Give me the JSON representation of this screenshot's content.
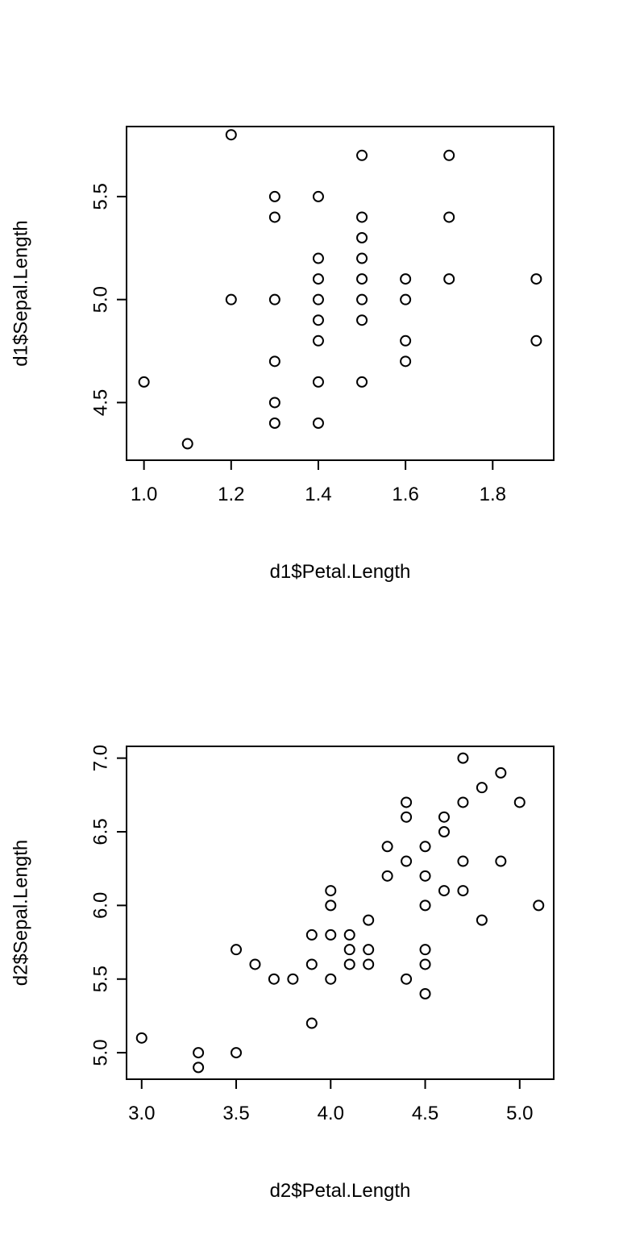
{
  "chart_data": [
    {
      "type": "scatter",
      "title": "",
      "xlabel": "d1$Petal.Length",
      "ylabel": "d1$Sepal.Length",
      "xlim": [
        0.96,
        1.94
      ],
      "ylim": [
        4.22,
        5.84
      ],
      "xticks": [
        1.0,
        1.2,
        1.4,
        1.6,
        1.8
      ],
      "xtick_labels": [
        "1.0",
        "1.2",
        "1.4",
        "1.6",
        "1.8"
      ],
      "yticks": [
        4.5,
        5.0,
        5.5
      ],
      "ytick_labels": [
        "4.5",
        "5.0",
        "5.5"
      ],
      "grid": false,
      "points": [
        [
          1.0,
          4.6
        ],
        [
          1.1,
          4.3
        ],
        [
          1.2,
          5.8
        ],
        [
          1.2,
          5.0
        ],
        [
          1.3,
          5.5
        ],
        [
          1.3,
          5.4
        ],
        [
          1.3,
          5.0
        ],
        [
          1.3,
          4.7
        ],
        [
          1.3,
          4.5
        ],
        [
          1.3,
          4.4
        ],
        [
          1.4,
          5.5
        ],
        [
          1.4,
          5.2
        ],
        [
          1.4,
          5.1
        ],
        [
          1.4,
          5.0
        ],
        [
          1.4,
          4.9
        ],
        [
          1.4,
          4.8
        ],
        [
          1.4,
          4.6
        ],
        [
          1.4,
          4.4
        ],
        [
          1.5,
          5.7
        ],
        [
          1.5,
          5.4
        ],
        [
          1.5,
          5.3
        ],
        [
          1.5,
          5.2
        ],
        [
          1.5,
          5.1
        ],
        [
          1.5,
          5.0
        ],
        [
          1.5,
          4.9
        ],
        [
          1.5,
          4.6
        ],
        [
          1.6,
          5.1
        ],
        [
          1.6,
          5.0
        ],
        [
          1.6,
          4.8
        ],
        [
          1.6,
          4.7
        ],
        [
          1.7,
          5.7
        ],
        [
          1.7,
          5.4
        ],
        [
          1.7,
          5.1
        ],
        [
          1.9,
          5.1
        ],
        [
          1.9,
          4.8
        ]
      ]
    },
    {
      "type": "scatter",
      "title": "",
      "xlabel": "d2$Petal.Length",
      "ylabel": "d2$Sepal.Length",
      "xlim": [
        2.92,
        5.18
      ],
      "ylim": [
        4.82,
        7.08
      ],
      "xticks": [
        3.0,
        3.5,
        4.0,
        4.5,
        5.0
      ],
      "xtick_labels": [
        "3.0",
        "3.5",
        "4.0",
        "4.5",
        "5.0"
      ],
      "yticks": [
        5.0,
        5.5,
        6.0,
        6.5,
        7.0
      ],
      "ytick_labels": [
        "5.0",
        "5.5",
        "6.0",
        "6.5",
        "7.0"
      ],
      "grid": false,
      "points": [
        [
          3.0,
          5.1
        ],
        [
          3.3,
          5.0
        ],
        [
          3.3,
          4.9
        ],
        [
          3.5,
          5.7
        ],
        [
          3.5,
          5.0
        ],
        [
          3.6,
          5.6
        ],
        [
          3.7,
          5.5
        ],
        [
          3.8,
          5.5
        ],
        [
          3.9,
          5.8
        ],
        [
          3.9,
          5.6
        ],
        [
          3.9,
          5.2
        ],
        [
          4.0,
          6.1
        ],
        [
          4.0,
          6.0
        ],
        [
          4.0,
          5.8
        ],
        [
          4.0,
          5.5
        ],
        [
          4.1,
          5.8
        ],
        [
          4.1,
          5.7
        ],
        [
          4.1,
          5.6
        ],
        [
          4.2,
          5.9
        ],
        [
          4.2,
          5.7
        ],
        [
          4.2,
          5.6
        ],
        [
          4.3,
          6.4
        ],
        [
          4.3,
          6.2
        ],
        [
          4.4,
          6.7
        ],
        [
          4.4,
          6.6
        ],
        [
          4.4,
          6.3
        ],
        [
          4.4,
          5.5
        ],
        [
          4.5,
          6.4
        ],
        [
          4.5,
          6.2
        ],
        [
          4.5,
          6.0
        ],
        [
          4.5,
          5.7
        ],
        [
          4.5,
          5.6
        ],
        [
          4.5,
          5.4
        ],
        [
          4.6,
          6.6
        ],
        [
          4.6,
          6.5
        ],
        [
          4.6,
          6.1
        ],
        [
          4.7,
          7.0
        ],
        [
          4.7,
          6.7
        ],
        [
          4.7,
          6.3
        ],
        [
          4.7,
          6.1
        ],
        [
          4.8,
          6.8
        ],
        [
          4.8,
          5.9
        ],
        [
          4.9,
          6.9
        ],
        [
          4.9,
          6.3
        ],
        [
          5.0,
          6.7
        ],
        [
          5.1,
          6.0
        ]
      ]
    }
  ]
}
